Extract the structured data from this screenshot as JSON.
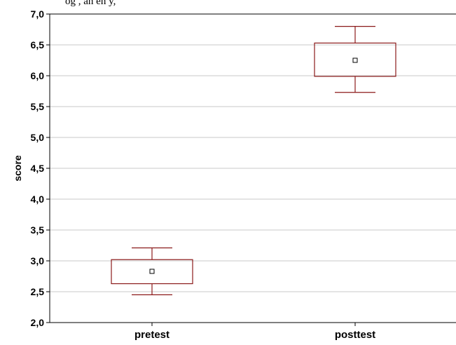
{
  "chart_data": {
    "type": "box",
    "ylabel": "score",
    "ylim": [
      2.0,
      7.0
    ],
    "y_ticks": [
      "2,0",
      "2,5",
      "3,0",
      "3,5",
      "4,0",
      "4,5",
      "5,0",
      "5,5",
      "6,0",
      "6,5",
      "7,0"
    ],
    "categories": [
      "pretest",
      "posttest"
    ],
    "boxes": [
      {
        "category": "pretest",
        "center": 2.83,
        "box_low": 2.63,
        "box_high": 3.02,
        "whisker_low": 2.45,
        "whisker_high": 3.21
      },
      {
        "category": "posttest",
        "center": 6.25,
        "box_low": 5.99,
        "box_high": 6.53,
        "whisker_low": 5.73,
        "whisker_high": 6.8
      }
    ],
    "grid": true
  },
  "header_fragment": "og , an en y, ",
  "colors": {
    "box_stroke": "#8b1a1a",
    "grid": "#c8c8c8",
    "axis": "#000000",
    "marker_fill": "#ffffff"
  }
}
